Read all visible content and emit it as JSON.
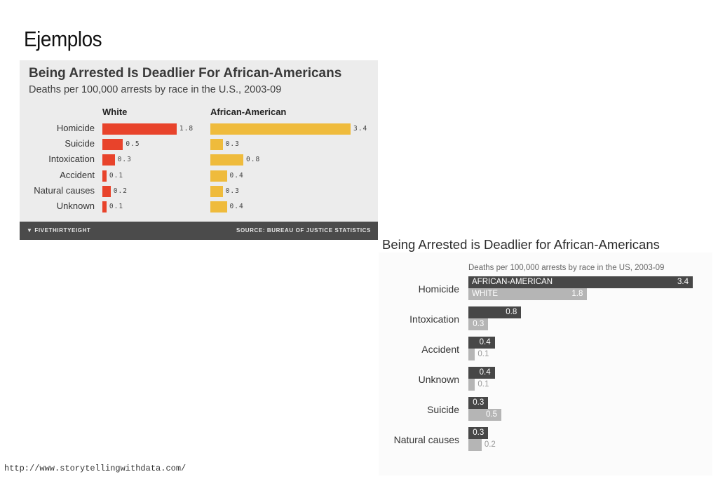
{
  "slide": {
    "title": "Ejemplos",
    "footer_url": "http://www.storytellingwithdata.com/"
  },
  "colors": {
    "white_series": "#e8432b",
    "african_american_series": "#efbb3c",
    "dark_bar": "#474747",
    "light_bar": "#b5b5b5"
  },
  "chart_data": [
    {
      "type": "bar",
      "title": "Being Arrested Is Deadlier For African-Americans",
      "subtitle": "Deaths per 100,000 arrests by race in the U.S., 2003-09",
      "categories": [
        "Homicide",
        "Suicide",
        "Intoxication",
        "Accident",
        "Natural causes",
        "Unknown"
      ],
      "series": [
        {
          "name": "White",
          "values": [
            1.8,
            0.5,
            0.3,
            0.1,
            0.2,
            0.1
          ],
          "labels": [
            "1.8",
            "0.5",
            "0.3",
            "0.1",
            "0.2",
            "0.1"
          ]
        },
        {
          "name": "African-American",
          "values": [
            3.4,
            0.3,
            0.8,
            0.4,
            0.3,
            0.4
          ],
          "labels": [
            "3.4",
            "0.3",
            "0.8",
            "0.4",
            "0.3",
            "0.4"
          ]
        }
      ],
      "footer_logo": "FIVETHIRTYEIGHT",
      "source": "SOURCE: BUREAU OF JUSTICE STATISTICS",
      "layout": "small multiples, horizontal bars"
    },
    {
      "type": "bar",
      "title": "Being Arrested is Deadlier for African-Americans",
      "subtitle": "Deaths per 100,000 arrests by race in the US, 2003-09",
      "categories": [
        "Homicide",
        "Intoxication",
        "Accident",
        "Unknown",
        "Suicide",
        "Natural causes"
      ],
      "series": [
        {
          "name": "AFRICAN-AMERICAN",
          "values": [
            3.4,
            0.8,
            0.4,
            0.4,
            0.3,
            0.3
          ],
          "labels": [
            "3.4",
            "0.8",
            "0.4",
            "0.4",
            "0.3",
            "0.3"
          ]
        },
        {
          "name": "WHITE",
          "values": [
            1.8,
            0.3,
            0.1,
            0.1,
            0.5,
            0.2
          ],
          "labels": [
            "1.8",
            "0.3",
            "0.1",
            "0.1",
            "0.5",
            "0.2"
          ]
        }
      ],
      "layout": "grouped horizontal bars"
    }
  ]
}
